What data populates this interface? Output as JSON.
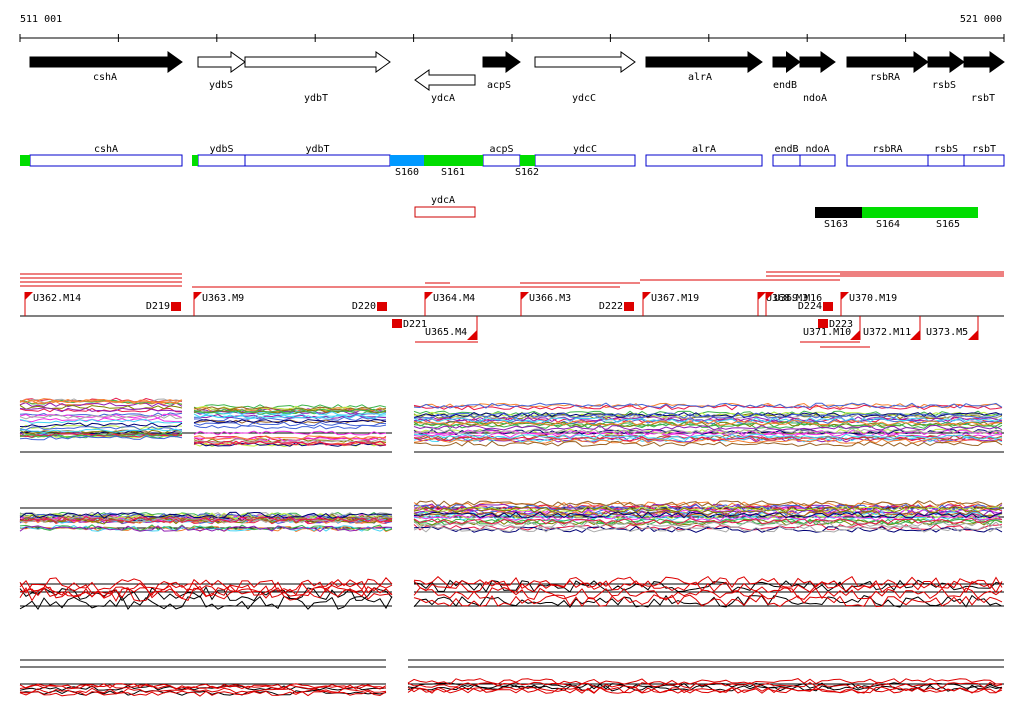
{
  "scale": {
    "start": "511 001",
    "end": "521 000"
  },
  "genes": [
    "cshA",
    "ydbS",
    "ydbT",
    "ydcA",
    "acpS",
    "ydcC",
    "alrA",
    "endB",
    "ndoA",
    "rsbRA",
    "rsbS",
    "rsbT"
  ],
  "gene_boxes": [
    "cshA",
    "ydbS",
    "ydbT",
    "acpS",
    "ydcC",
    "alrA",
    "endB",
    "ndoA",
    "rsbRA",
    "rsbS",
    "rsbT"
  ],
  "segments": [
    "S160",
    "S161",
    "S162",
    "S163",
    "S164",
    "S165"
  ],
  "lower_box": "ydcA",
  "upstream": [
    "U362.M14",
    "U363.M9",
    "U364.M4",
    "U366.M3",
    "U367.M19",
    "U368.M3",
    "U369.M16",
    "U370.M19"
  ],
  "upstream_lower": [
    "U365.M4",
    "U371.M10",
    "U372.M11",
    "U373.M5"
  ],
  "downstream": [
    "D219",
    "D220",
    "D222",
    "D224",
    "D221",
    "D223"
  ]
}
